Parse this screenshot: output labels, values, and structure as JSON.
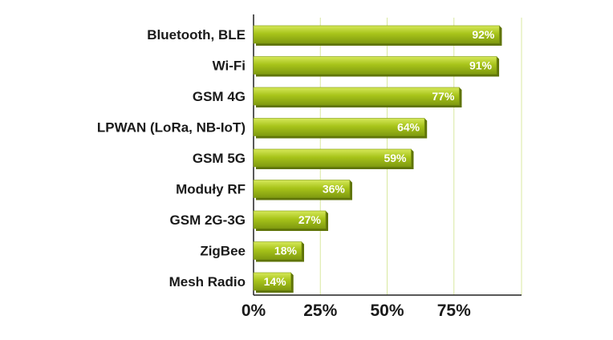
{
  "colors": {
    "bar_light": "#d6e85a",
    "bar_mid": "#a8c41a",
    "bar_dark": "#7f9a10",
    "bar_shadow": "#5f7408",
    "grid": "#d9e8a0",
    "axis": "#222222"
  },
  "chart_data": {
    "type": "bar",
    "orientation": "horizontal",
    "categories": [
      "Bluetooth, BLE",
      "Wi-Fi",
      "GSM 4G",
      "LPWAN (LoRa, NB-IoT)",
      "GSM 5G",
      "Moduły RF",
      "GSM 2G-3G",
      "ZigBee",
      "Mesh Radio"
    ],
    "values": [
      92,
      91,
      77,
      64,
      59,
      36,
      27,
      18,
      14
    ],
    "value_labels": [
      "92%",
      "91%",
      "77%",
      "64%",
      "59%",
      "36%",
      "27%",
      "18%",
      "14%"
    ],
    "xlim": [
      0,
      100
    ],
    "x_ticks": [
      0,
      25,
      50,
      75
    ],
    "x_tick_labels": [
      "0%",
      "25%",
      "50%",
      "75%"
    ],
    "grid": true,
    "legend": "none"
  }
}
